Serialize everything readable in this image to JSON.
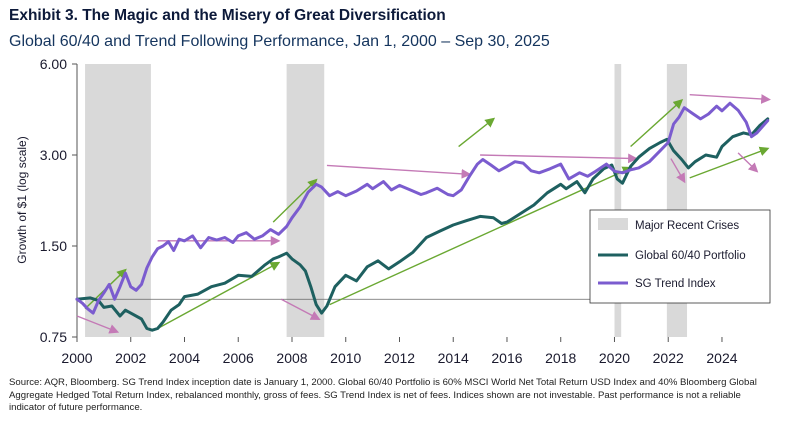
{
  "header": {
    "title": "Exhibit 3. The Magic and the Misery of Great Diversification",
    "subtitle": "Global 60/40 and Trend Following Performance, Jan 1, 2000 – Sep 30, 2025"
  },
  "footnote": "Source: AQR, Bloomberg. SG Trend Index inception date is January 1, 2000. Global 60/40 Portfolio is 60% MSCI World Net Total Return USD Index and 40% Bloomberg Global Aggregate Hedged Total Return Index, rebalanced monthly, gross of fees. SG Trend Index is net of fees. Indices shown are not investable. Past performance is not a reliable indicator of future performance.",
  "colors": {
    "portfolio": "#1e6060",
    "trend": "#7b5ccf",
    "crisis": "#d9d9d9",
    "arrow_up": "#6aa832",
    "arrow_flat": "#c47ab6"
  },
  "chart_data": {
    "type": "line",
    "title": "Global 60/40 and Trend Following Performance, Jan 1, 2000 – Sep 30, 2025",
    "xlabel": "",
    "ylabel": "Growth of $1 (log scale)",
    "y_scale": "log",
    "ylim": [
      0.75,
      6.0
    ],
    "xlim": [
      2000.0,
      2025.75
    ],
    "y_ticks": [
      0.75,
      1.5,
      3.0,
      6.0
    ],
    "y_tick_labels": [
      "0.75",
      "1.50",
      "3.00",
      "6.00"
    ],
    "x_ticks": [
      2000,
      2002,
      2004,
      2006,
      2008,
      2010,
      2012,
      2014,
      2016,
      2018,
      2020,
      2022,
      2024
    ],
    "x_tick_labels": [
      "2000",
      "2002",
      "2004",
      "2006",
      "2008",
      "2010",
      "2012",
      "2014",
      "2016",
      "2018",
      "2020",
      "2022",
      "2024"
    ],
    "baseline": 1.0,
    "legend_position": "center-right",
    "crises": [
      {
        "label": "Major Recent Crises",
        "start": 2000.3,
        "end": 2002.75
      },
      {
        "label": "Major Recent Crises",
        "start": 2007.8,
        "end": 2009.2
      },
      {
        "label": "Major Recent Crises",
        "start": 2020.0,
        "end": 2020.25
      },
      {
        "label": "Major Recent Crises",
        "start": 2021.95,
        "end": 2022.7
      }
    ],
    "legend": [
      {
        "key": "crisis",
        "label": "Major Recent Crises"
      },
      {
        "key": "portfolio",
        "label": "Global 60/40 Portfolio"
      },
      {
        "key": "trend",
        "label": "SG Trend Index"
      }
    ],
    "series": [
      {
        "name": "Global 60/40 Portfolio",
        "key": "portfolio",
        "points": [
          [
            2000.0,
            1.0
          ],
          [
            2000.5,
            1.01
          ],
          [
            2000.8,
            0.99
          ],
          [
            2001.0,
            0.94
          ],
          [
            2001.3,
            0.95
          ],
          [
            2001.6,
            0.88
          ],
          [
            2001.8,
            0.92
          ],
          [
            2002.0,
            0.9
          ],
          [
            2002.4,
            0.86
          ],
          [
            2002.6,
            0.8
          ],
          [
            2002.8,
            0.79
          ],
          [
            2003.0,
            0.8
          ],
          [
            2003.2,
            0.84
          ],
          [
            2003.5,
            0.92
          ],
          [
            2003.8,
            0.96
          ],
          [
            2004.0,
            1.02
          ],
          [
            2004.5,
            1.04
          ],
          [
            2005.0,
            1.1
          ],
          [
            2005.5,
            1.13
          ],
          [
            2006.0,
            1.2
          ],
          [
            2006.5,
            1.19
          ],
          [
            2007.0,
            1.3
          ],
          [
            2007.3,
            1.36
          ],
          [
            2007.5,
            1.38
          ],
          [
            2007.8,
            1.42
          ],
          [
            2008.0,
            1.36
          ],
          [
            2008.3,
            1.3
          ],
          [
            2008.5,
            1.24
          ],
          [
            2008.7,
            1.1
          ],
          [
            2008.9,
            0.96
          ],
          [
            2009.1,
            0.9
          ],
          [
            2009.3,
            0.95
          ],
          [
            2009.6,
            1.1
          ],
          [
            2010.0,
            1.2
          ],
          [
            2010.4,
            1.15
          ],
          [
            2010.8,
            1.28
          ],
          [
            2011.2,
            1.34
          ],
          [
            2011.6,
            1.26
          ],
          [
            2012.0,
            1.33
          ],
          [
            2012.5,
            1.43
          ],
          [
            2013.0,
            1.6
          ],
          [
            2013.5,
            1.68
          ],
          [
            2014.0,
            1.76
          ],
          [
            2014.5,
            1.82
          ],
          [
            2015.0,
            1.88
          ],
          [
            2015.5,
            1.86
          ],
          [
            2015.8,
            1.78
          ],
          [
            2016.0,
            1.8
          ],
          [
            2016.5,
            1.92
          ],
          [
            2017.0,
            2.05
          ],
          [
            2017.5,
            2.25
          ],
          [
            2018.0,
            2.4
          ],
          [
            2018.2,
            2.32
          ],
          [
            2018.6,
            2.45
          ],
          [
            2018.9,
            2.25
          ],
          [
            2019.2,
            2.5
          ],
          [
            2019.6,
            2.7
          ],
          [
            2019.9,
            2.78
          ],
          [
            2020.1,
            2.5
          ],
          [
            2020.3,
            2.42
          ],
          [
            2020.6,
            2.75
          ],
          [
            2020.9,
            2.95
          ],
          [
            2021.3,
            3.15
          ],
          [
            2021.7,
            3.3
          ],
          [
            2021.95,
            3.38
          ],
          [
            2022.2,
            3.1
          ],
          [
            2022.5,
            2.9
          ],
          [
            2022.75,
            2.72
          ],
          [
            2023.0,
            2.85
          ],
          [
            2023.4,
            3.0
          ],
          [
            2023.8,
            2.95
          ],
          [
            2024.0,
            3.2
          ],
          [
            2024.4,
            3.45
          ],
          [
            2024.8,
            3.55
          ],
          [
            2025.1,
            3.5
          ],
          [
            2025.4,
            3.75
          ],
          [
            2025.7,
            3.95
          ]
        ]
      },
      {
        "name": "SG Trend Index",
        "key": "trend",
        "points": [
          [
            2000.0,
            1.0
          ],
          [
            2000.2,
            0.97
          ],
          [
            2000.4,
            0.93
          ],
          [
            2000.6,
            0.9
          ],
          [
            2000.8,
            0.99
          ],
          [
            2001.0,
            1.05
          ],
          [
            2001.2,
            1.12
          ],
          [
            2001.4,
            1.0
          ],
          [
            2001.6,
            1.1
          ],
          [
            2001.8,
            1.22
          ],
          [
            2002.0,
            1.1
          ],
          [
            2002.2,
            1.07
          ],
          [
            2002.4,
            1.12
          ],
          [
            2002.6,
            1.27
          ],
          [
            2002.8,
            1.38
          ],
          [
            2003.0,
            1.47
          ],
          [
            2003.2,
            1.5
          ],
          [
            2003.4,
            1.55
          ],
          [
            2003.6,
            1.45
          ],
          [
            2003.8,
            1.58
          ],
          [
            2004.0,
            1.56
          ],
          [
            2004.3,
            1.62
          ],
          [
            2004.6,
            1.48
          ],
          [
            2004.9,
            1.6
          ],
          [
            2005.2,
            1.57
          ],
          [
            2005.5,
            1.6
          ],
          [
            2005.8,
            1.54
          ],
          [
            2006.0,
            1.62
          ],
          [
            2006.3,
            1.66
          ],
          [
            2006.6,
            1.58
          ],
          [
            2006.9,
            1.62
          ],
          [
            2007.2,
            1.7
          ],
          [
            2007.5,
            1.64
          ],
          [
            2007.8,
            1.74
          ],
          [
            2008.0,
            1.86
          ],
          [
            2008.3,
            2.02
          ],
          [
            2008.6,
            2.26
          ],
          [
            2008.9,
            2.4
          ],
          [
            2009.1,
            2.35
          ],
          [
            2009.4,
            2.2
          ],
          [
            2009.7,
            2.27
          ],
          [
            2010.0,
            2.2
          ],
          [
            2010.4,
            2.28
          ],
          [
            2010.8,
            2.4
          ],
          [
            2011.0,
            2.32
          ],
          [
            2011.4,
            2.45
          ],
          [
            2011.7,
            2.3
          ],
          [
            2012.0,
            2.38
          ],
          [
            2012.4,
            2.3
          ],
          [
            2012.8,
            2.22
          ],
          [
            2013.0,
            2.25
          ],
          [
            2013.4,
            2.33
          ],
          [
            2013.8,
            2.22
          ],
          [
            2014.0,
            2.2
          ],
          [
            2014.3,
            2.3
          ],
          [
            2014.6,
            2.55
          ],
          [
            2014.9,
            2.8
          ],
          [
            2015.1,
            2.9
          ],
          [
            2015.4,
            2.78
          ],
          [
            2015.7,
            2.66
          ],
          [
            2016.0,
            2.75
          ],
          [
            2016.3,
            2.85
          ],
          [
            2016.6,
            2.82
          ],
          [
            2016.9,
            2.66
          ],
          [
            2017.2,
            2.62
          ],
          [
            2017.6,
            2.7
          ],
          [
            2018.0,
            2.8
          ],
          [
            2018.3,
            2.5
          ],
          [
            2018.7,
            2.62
          ],
          [
            2019.0,
            2.55
          ],
          [
            2019.3,
            2.65
          ],
          [
            2019.7,
            2.8
          ],
          [
            2020.0,
            2.65
          ],
          [
            2020.3,
            2.62
          ],
          [
            2020.6,
            2.68
          ],
          [
            2020.9,
            2.72
          ],
          [
            2021.3,
            2.85
          ],
          [
            2021.7,
            3.1
          ],
          [
            2022.0,
            3.3
          ],
          [
            2022.2,
            3.8
          ],
          [
            2022.4,
            4.0
          ],
          [
            2022.6,
            4.3
          ],
          [
            2022.9,
            4.12
          ],
          [
            2023.2,
            3.95
          ],
          [
            2023.5,
            4.1
          ],
          [
            2023.8,
            4.35
          ],
          [
            2024.0,
            4.2
          ],
          [
            2024.3,
            4.45
          ],
          [
            2024.6,
            4.22
          ],
          [
            2024.9,
            3.85
          ],
          [
            2025.1,
            3.45
          ],
          [
            2025.3,
            3.55
          ],
          [
            2025.5,
            3.72
          ],
          [
            2025.7,
            3.9
          ]
        ]
      }
    ],
    "annotations": [
      {
        "kind": "up",
        "from": [
          2000.3,
          0.93
        ],
        "to": [
          2001.8,
          1.25
        ]
      },
      {
        "kind": "flat",
        "from": [
          2000.0,
          0.88
        ],
        "to": [
          2001.5,
          0.78
        ]
      },
      {
        "kind": "flat",
        "from": [
          2003.0,
          1.56
        ],
        "to": [
          2007.5,
          1.56
        ]
      },
      {
        "kind": "up",
        "from": [
          2007.3,
          1.8
        ],
        "to": [
          2008.9,
          2.48
        ]
      },
      {
        "kind": "flat",
        "from": [
          2007.6,
          1.0
        ],
        "to": [
          2009.0,
          0.86
        ]
      },
      {
        "kind": "up",
        "from": [
          2003.0,
          0.8
        ],
        "to": [
          2007.5,
          1.32
        ]
      },
      {
        "kind": "flat",
        "from": [
          2009.3,
          2.77
        ],
        "to": [
          2014.6,
          2.59
        ]
      },
      {
        "kind": "up",
        "from": [
          2009.4,
          0.96
        ],
        "to": [
          2020.6,
          2.72
        ]
      },
      {
        "kind": "up",
        "from": [
          2014.2,
          3.2
        ],
        "to": [
          2015.5,
          3.95
        ]
      },
      {
        "kind": "flat",
        "from": [
          2015.0,
          3.0
        ],
        "to": [
          2020.8,
          2.92
        ]
      },
      {
        "kind": "up",
        "from": [
          2020.6,
          3.2
        ],
        "to": [
          2022.5,
          4.55
        ]
      },
      {
        "kind": "flat",
        "from": [
          2022.1,
          2.92
        ],
        "to": [
          2022.6,
          2.45
        ]
      },
      {
        "kind": "flat",
        "from": [
          2022.8,
          4.75
        ],
        "to": [
          2025.75,
          4.58
        ]
      },
      {
        "kind": "up",
        "from": [
          2022.8,
          2.52
        ],
        "to": [
          2025.7,
          3.15
        ]
      },
      {
        "kind": "flat",
        "from": [
          2024.6,
          3.05
        ],
        "to": [
          2025.3,
          2.65
        ]
      }
    ]
  }
}
